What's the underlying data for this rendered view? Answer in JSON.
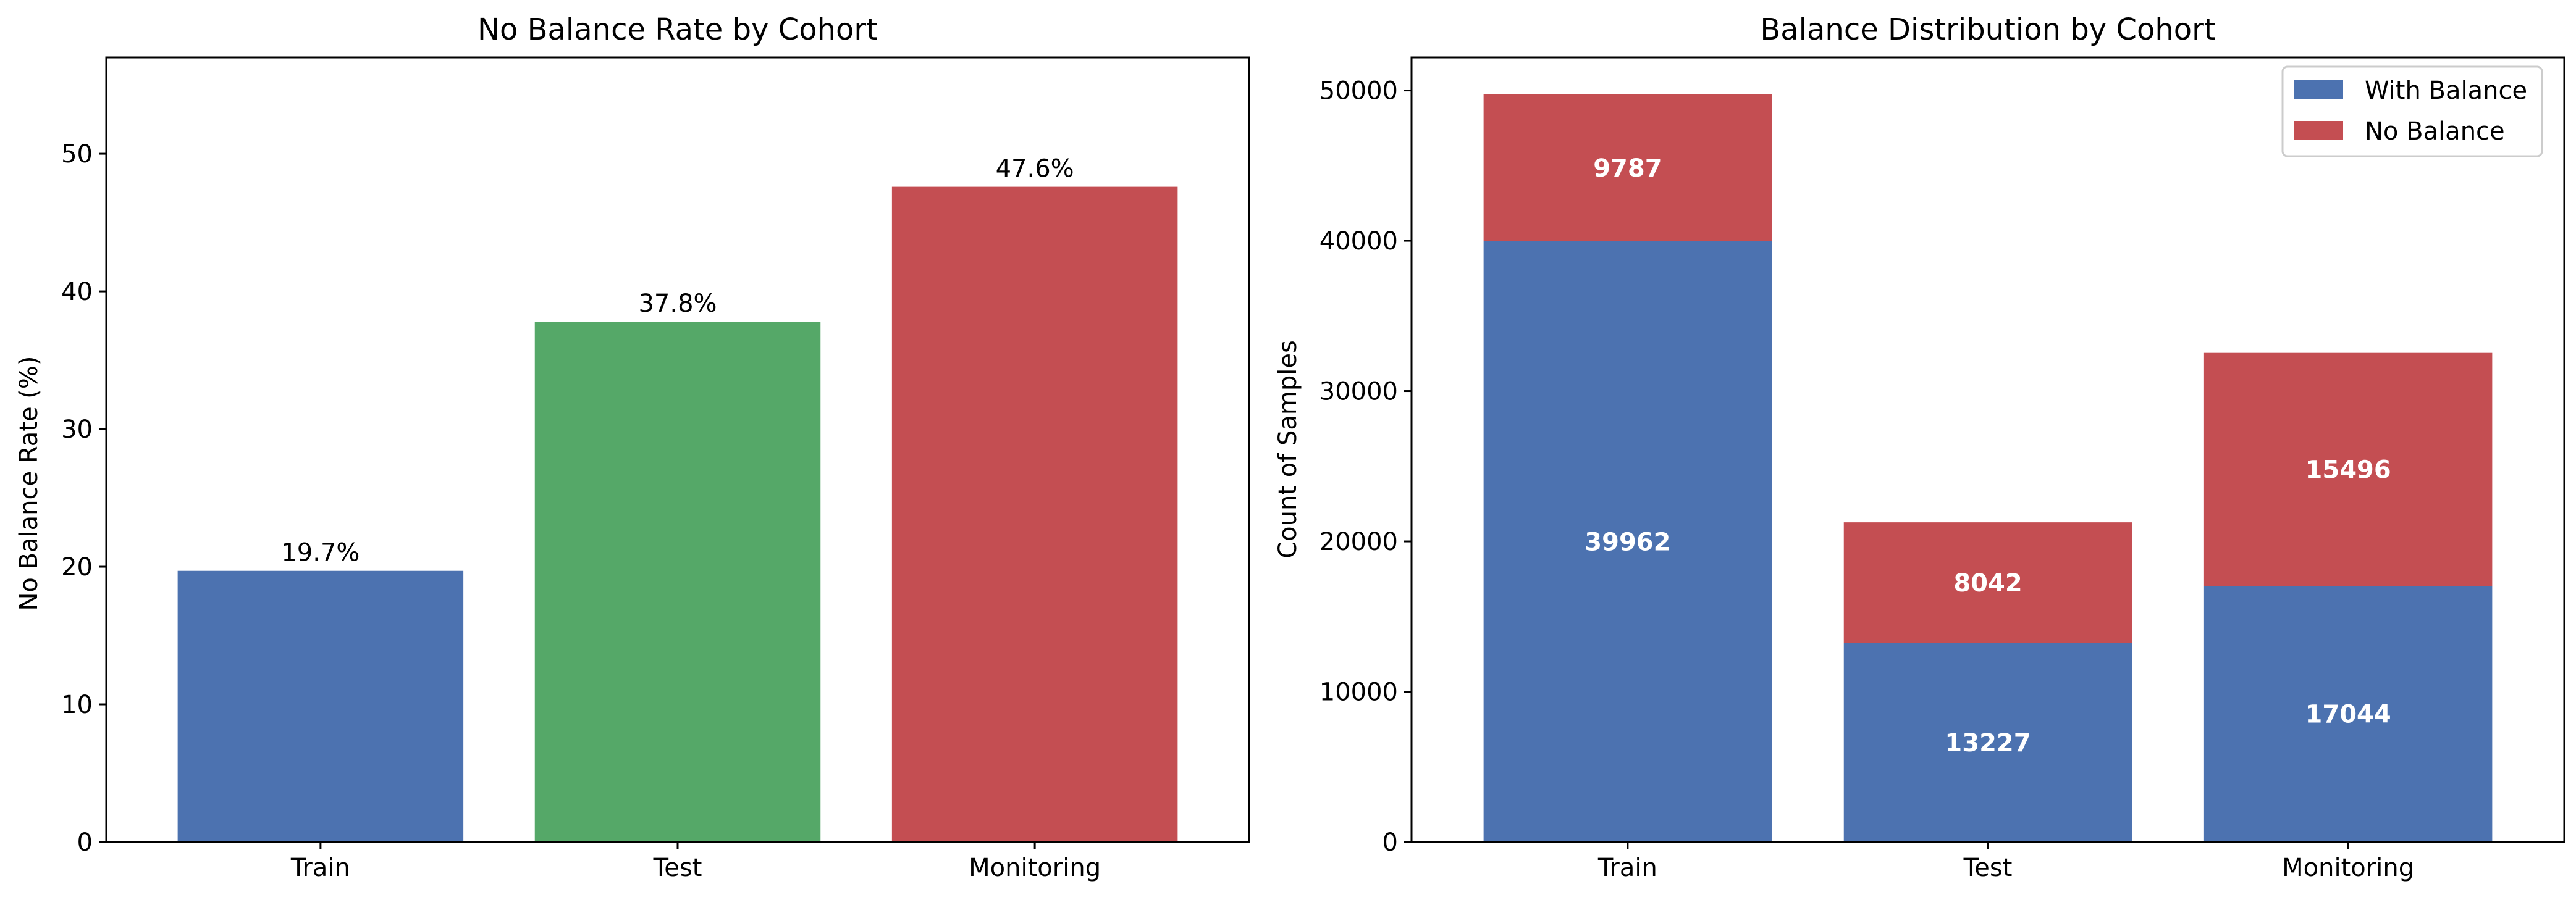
{
  "chart_data": [
    {
      "type": "bar",
      "title": "No Balance Rate by Cohort",
      "xlabel": "",
      "ylabel": "No Balance Rate (%)",
      "categories": [
        "Train",
        "Test",
        "Monitoring"
      ],
      "values": [
        19.7,
        37.8,
        47.6
      ],
      "value_labels": [
        "19.7%",
        "37.8%",
        "47.6%"
      ],
      "colors": [
        "#4c72b0",
        "#55a868",
        "#c44e52"
      ],
      "ylim": [
        0,
        57
      ],
      "yticks": [
        0,
        10,
        20,
        30,
        40,
        50
      ],
      "grid": false
    },
    {
      "type": "bar",
      "stacked": true,
      "title": "Balance Distribution by Cohort",
      "xlabel": "",
      "ylabel": "Count of Samples",
      "categories": [
        "Train",
        "Test",
        "Monitoring"
      ],
      "series": [
        {
          "name": "With Balance",
          "values": [
            39962,
            13227,
            17044
          ],
          "color": "#4c72b0"
        },
        {
          "name": "No Balance",
          "values": [
            9787,
            8042,
            15496
          ],
          "color": "#c44e52"
        }
      ],
      "ylim": [
        0,
        52200
      ],
      "yticks": [
        0,
        10000,
        20000,
        30000,
        40000,
        50000
      ],
      "legend_position": "top-right",
      "grid": false
    }
  ]
}
